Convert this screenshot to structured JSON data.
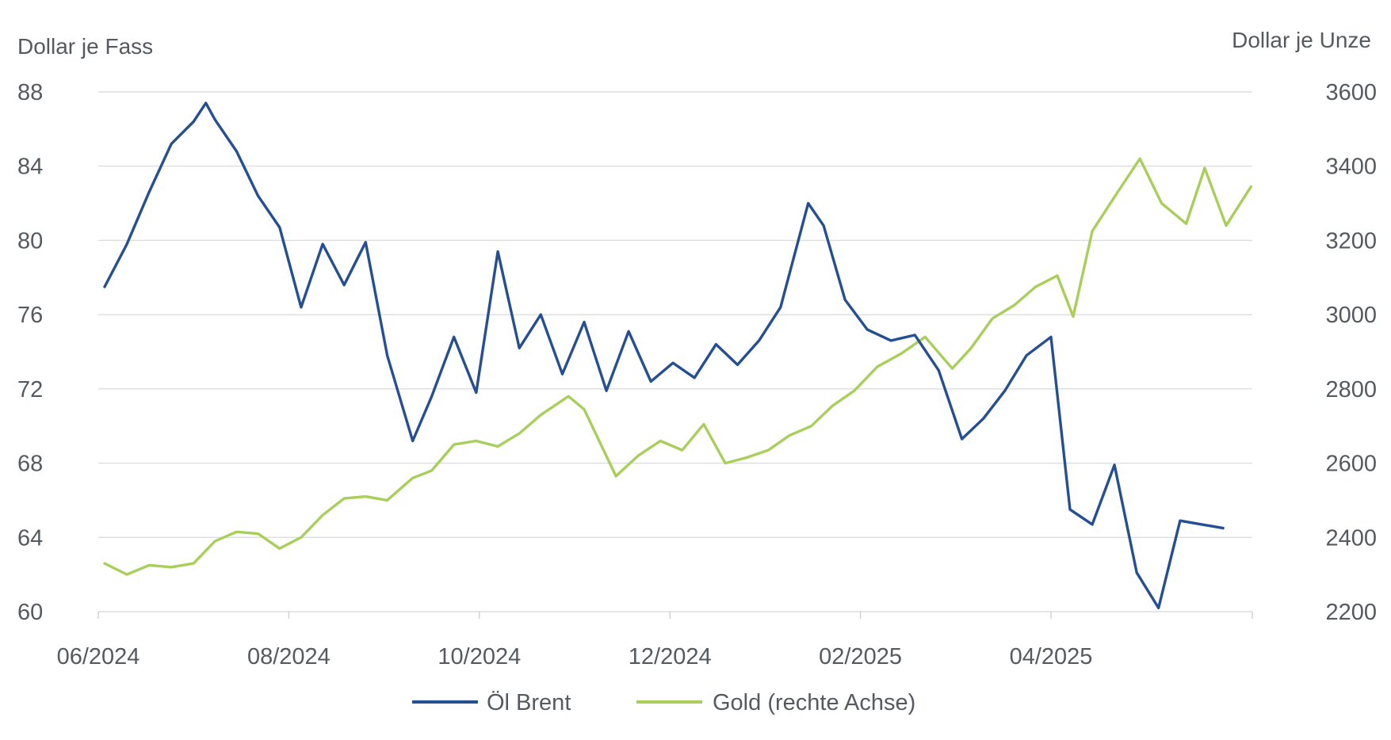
{
  "chart_data": {
    "type": "line",
    "left_axis_title": "Dollar je Fass",
    "right_axis_title": "Dollar je Unze",
    "xlabel": "",
    "ylim_left": [
      60,
      88
    ],
    "ylim_right": [
      2200,
      3600
    ],
    "y_ticks_left": [
      "88",
      "84",
      "80",
      "76",
      "72",
      "68",
      "64",
      "60"
    ],
    "y_ticks_right": [
      "3600",
      "3400",
      "3200",
      "3000",
      "2800",
      "2600",
      "2400",
      "2200"
    ],
    "x_ticks": [
      "06/2024",
      "08/2024",
      "10/2024",
      "12/2024",
      "02/2025",
      "04/2025"
    ],
    "grid": "horizontal",
    "legend_position": "bottom",
    "colors": {
      "oil": "#254f93",
      "gold": "#a9cf5b"
    },
    "series": [
      {
        "name": "Öl Brent",
        "axis": "left",
        "color": "#254f93",
        "x": [
          "2024-06-03",
          "2024-06-10",
          "2024-06-17",
          "2024-06-24",
          "2024-07-01",
          "2024-07-05",
          "2024-07-08",
          "2024-07-15",
          "2024-07-22",
          "2024-07-29",
          "2024-08-05",
          "2024-08-12",
          "2024-08-19",
          "2024-08-26",
          "2024-09-02",
          "2024-09-10",
          "2024-09-16",
          "2024-09-23",
          "2024-09-30",
          "2024-10-07",
          "2024-10-14",
          "2024-10-21",
          "2024-10-28",
          "2024-11-04",
          "2024-11-11",
          "2024-11-18",
          "2024-11-25",
          "2024-12-02",
          "2024-12-09",
          "2024-12-16",
          "2024-12-23",
          "2024-12-30",
          "2025-01-06",
          "2025-01-15",
          "2025-01-20",
          "2025-01-27",
          "2025-02-03",
          "2025-02-10",
          "2025-02-17",
          "2025-02-24",
          "2025-03-03",
          "2025-03-10",
          "2025-03-17",
          "2025-03-24",
          "2025-04-01",
          "2025-04-07",
          "2025-04-14",
          "2025-04-21",
          "2025-04-28",
          "2025-05-05",
          "2025-05-12",
          "2025-05-19",
          "2025-05-26"
        ],
        "values": [
          77.5,
          79.8,
          82.6,
          85.2,
          86.4,
          87.4,
          86.5,
          84.8,
          82.4,
          80.7,
          76.4,
          79.8,
          77.6,
          79.9,
          73.8,
          69.2,
          71.6,
          74.8,
          71.8,
          79.4,
          74.2,
          76.0,
          72.8,
          75.6,
          71.9,
          75.1,
          72.4,
          73.4,
          72.6,
          74.4,
          73.3,
          74.6,
          76.4,
          82.0,
          80.8,
          76.8,
          75.2,
          74.6,
          74.9,
          73.0,
          69.3,
          70.4,
          71.9,
          73.8,
          74.8,
          65.5,
          64.7,
          67.9,
          62.1,
          60.2,
          64.9,
          64.7,
          64.5
        ]
      },
      {
        "name": "Gold (rechte Achse)",
        "axis": "right",
        "color": "#a9cf5b",
        "x": [
          "2024-06-03",
          "2024-06-10",
          "2024-06-17",
          "2024-06-24",
          "2024-07-01",
          "2024-07-08",
          "2024-07-15",
          "2024-07-22",
          "2024-07-29",
          "2024-08-05",
          "2024-08-12",
          "2024-08-19",
          "2024-08-26",
          "2024-09-02",
          "2024-09-10",
          "2024-09-16",
          "2024-09-23",
          "2024-09-30",
          "2024-10-07",
          "2024-10-14",
          "2024-10-21",
          "2024-10-30",
          "2024-11-04",
          "2024-11-14",
          "2024-11-21",
          "2024-11-28",
          "2024-12-05",
          "2024-12-12",
          "2024-12-19",
          "2024-12-26",
          "2025-01-02",
          "2025-01-09",
          "2025-01-16",
          "2025-01-23",
          "2025-01-30",
          "2025-02-06",
          "2025-02-13",
          "2025-02-20",
          "2025-02-28",
          "2025-03-06",
          "2025-03-13",
          "2025-03-20",
          "2025-03-27",
          "2025-04-03",
          "2025-04-08",
          "2025-04-14",
          "2025-04-22",
          "2025-04-29",
          "2025-05-06",
          "2025-05-14",
          "2025-05-20",
          "2025-05-27",
          "2025-06-04"
        ],
        "values": [
          2330,
          2300,
          2325,
          2320,
          2330,
          2390,
          2415,
          2410,
          2370,
          2400,
          2460,
          2505,
          2510,
          2500,
          2560,
          2580,
          2650,
          2660,
          2645,
          2680,
          2730,
          2780,
          2745,
          2565,
          2620,
          2660,
          2635,
          2705,
          2600,
          2615,
          2635,
          2675,
          2700,
          2755,
          2795,
          2860,
          2895,
          2940,
          2855,
          2910,
          2990,
          3025,
          3075,
          3105,
          2995,
          3225,
          3330,
          3420,
          3300,
          3245,
          3395,
          3240,
          3345
        ]
      }
    ]
  }
}
